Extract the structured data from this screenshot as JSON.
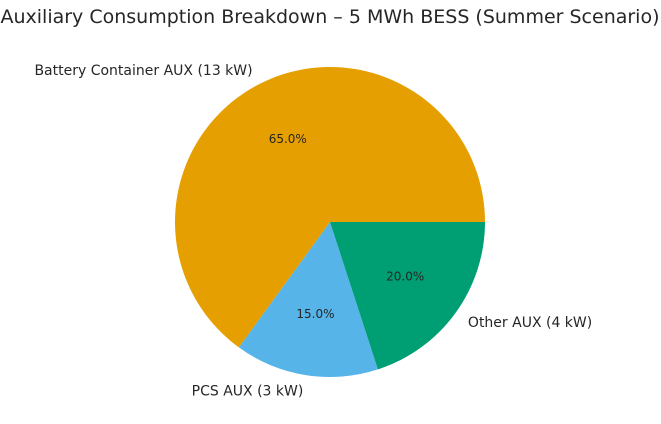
{
  "chart_data": {
    "type": "pie",
    "title": "Auxiliary Consumption Breakdown – 5 MWh BESS (Summer Scenario)",
    "slices": [
      {
        "label": "Battery Container AUX (13 kW)",
        "value": 13,
        "percent_label": "65.0%",
        "color": "#E69F00"
      },
      {
        "label": "PCS AUX (3 kW)",
        "value": 3,
        "percent_label": "15.0%",
        "color": "#56B4E9"
      },
      {
        "label": "Other AUX (4 kW)",
        "value": 4,
        "percent_label": "20.0%",
        "color": "#009E73"
      }
    ],
    "start_angle_deg": 0,
    "direction": "counterclockwise",
    "legend": "none"
  }
}
